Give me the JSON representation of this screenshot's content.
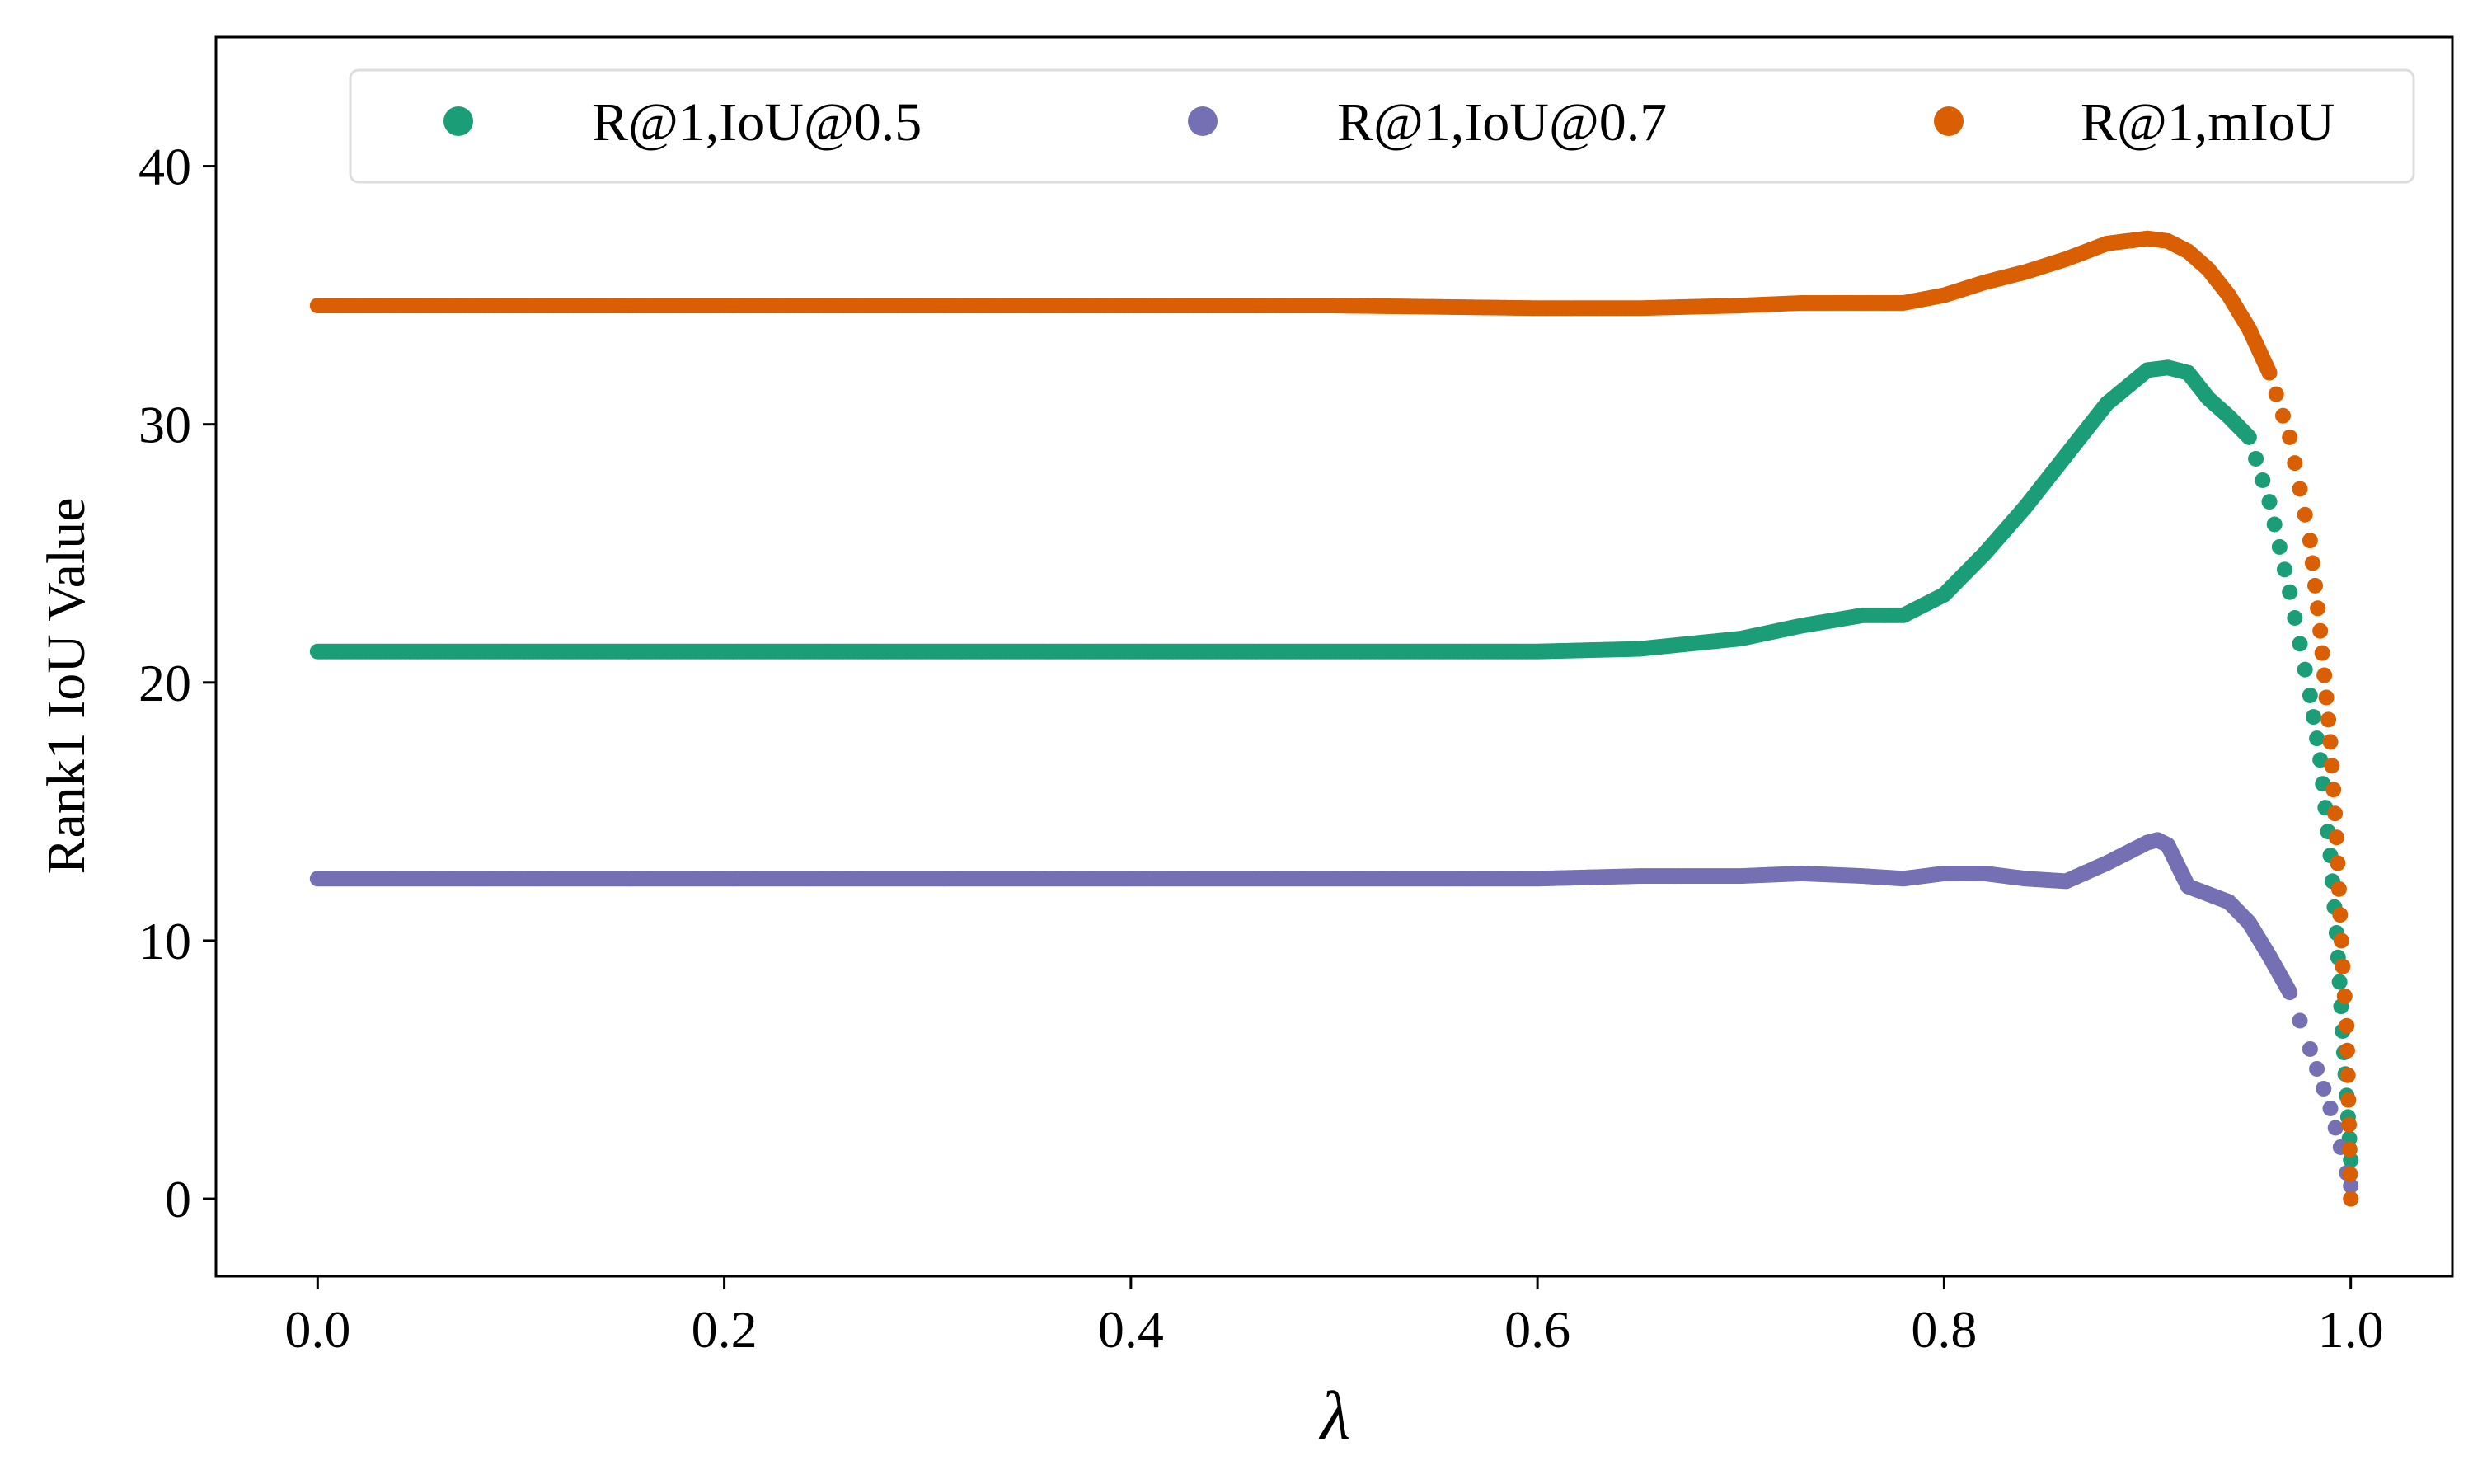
{
  "chart_data": {
    "type": "scatter",
    "title": "",
    "xlabel": "λ",
    "ylabel": "Rank1 IoU Value",
    "xlim": [
      -0.05,
      1.05
    ],
    "ylim": [
      -3,
      45
    ],
    "x_ticks": [
      0.0,
      0.2,
      0.4,
      0.6,
      0.8,
      1.0
    ],
    "x_tick_labels": [
      "0.0",
      "0.2",
      "0.4",
      "0.6",
      "0.8",
      "1.0"
    ],
    "y_ticks": [
      0,
      10,
      20,
      30,
      40
    ],
    "y_tick_labels": [
      "0",
      "10",
      "20",
      "30",
      "40"
    ],
    "grid": false,
    "legend_position": "top",
    "series": [
      {
        "name": "R@1,IoU@0.5",
        "color": "#1b9e77",
        "x": [
          0.0,
          0.1,
          0.2,
          0.3,
          0.4,
          0.5,
          0.6,
          0.65,
          0.7,
          0.73,
          0.76,
          0.78,
          0.8,
          0.82,
          0.84,
          0.86,
          0.88,
          0.9,
          0.91,
          0.92,
          0.93,
          0.94,
          0.95,
          0.96,
          0.97,
          0.975,
          0.98,
          0.985,
          0.99,
          0.993,
          0.996,
          0.998,
          1.0
        ],
        "y": [
          21.2,
          21.2,
          21.2,
          21.2,
          21.2,
          21.2,
          21.2,
          21.3,
          21.7,
          22.2,
          22.6,
          22.6,
          23.4,
          25.0,
          26.8,
          28.8,
          30.8,
          32.1,
          32.2,
          32.0,
          31.0,
          30.3,
          29.5,
          27.0,
          23.5,
          21.5,
          19.5,
          17.0,
          13.3,
          10.3,
          6.5,
          4.0,
          1.5
        ]
      },
      {
        "name": "R@1,IoU@0.7",
        "color": "#7570b3",
        "x": [
          0.0,
          0.1,
          0.2,
          0.3,
          0.4,
          0.5,
          0.6,
          0.65,
          0.7,
          0.73,
          0.76,
          0.78,
          0.8,
          0.82,
          0.84,
          0.86,
          0.88,
          0.9,
          0.905,
          0.91,
          0.92,
          0.93,
          0.94,
          0.95,
          0.96,
          0.97,
          0.98,
          0.99,
          0.995,
          0.998,
          1.0
        ],
        "y": [
          12.4,
          12.4,
          12.4,
          12.4,
          12.4,
          12.4,
          12.4,
          12.5,
          12.5,
          12.6,
          12.5,
          12.4,
          12.6,
          12.6,
          12.4,
          12.3,
          13.0,
          13.8,
          13.9,
          13.7,
          12.1,
          11.8,
          11.5,
          10.7,
          9.4,
          8.0,
          5.8,
          3.5,
          2.0,
          1.0,
          0.5
        ]
      },
      {
        "name": "R@1,mIoU",
        "color": "#d95f02",
        "x": [
          0.0,
          0.1,
          0.2,
          0.3,
          0.4,
          0.5,
          0.6,
          0.65,
          0.7,
          0.73,
          0.76,
          0.78,
          0.8,
          0.82,
          0.84,
          0.86,
          0.88,
          0.9,
          0.91,
          0.92,
          0.93,
          0.94,
          0.95,
          0.96,
          0.97,
          0.98,
          0.985,
          0.99,
          0.993,
          0.996,
          0.998,
          1.0
        ],
        "y": [
          34.6,
          34.6,
          34.6,
          34.6,
          34.6,
          34.6,
          34.5,
          34.5,
          34.6,
          34.7,
          34.7,
          34.7,
          35.0,
          35.5,
          35.9,
          36.4,
          37.0,
          37.2,
          37.1,
          36.7,
          36.0,
          35.0,
          33.7,
          32.0,
          29.5,
          25.5,
          22.0,
          17.7,
          14.0,
          9.0,
          6.7,
          0.0
        ]
      }
    ]
  }
}
